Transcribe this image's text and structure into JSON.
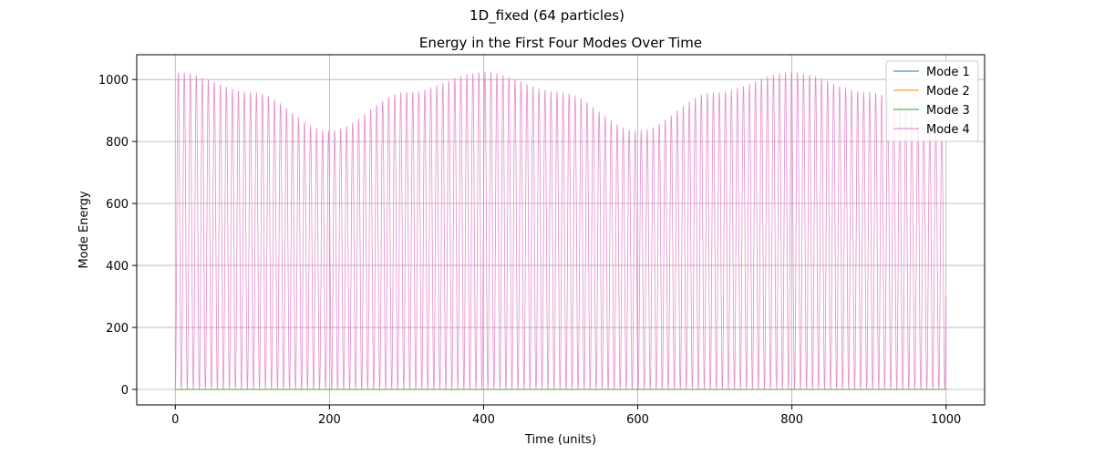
{
  "figure": {
    "suptitle": "1D_fixed (64 particles)"
  },
  "chart_data": {
    "type": "line",
    "title": "Energy in the First Four Modes Over Time",
    "xlabel": "Time (units)",
    "ylabel": "Mode Energy",
    "xlim": [
      -50,
      1050
    ],
    "ylim": [
      -50,
      1080
    ],
    "xticks": [
      0,
      200,
      400,
      600,
      800,
      1000
    ],
    "yticks": [
      0,
      200,
      400,
      600,
      800,
      1000
    ],
    "grid": true,
    "legend_position": "upper right",
    "series": [
      {
        "name": "Mode 1",
        "color": "#1f77b4",
        "x": [
          0,
          1000
        ],
        "values": [
          0,
          0
        ]
      },
      {
        "name": "Mode 2",
        "color": "#ff7f0e",
        "x": [
          0,
          1000
        ],
        "values": [
          0,
          0
        ]
      },
      {
        "name": "Mode 3",
        "color": "#2ca02c",
        "x": [
          0,
          1000
        ],
        "values": [
          0,
          0
        ]
      },
      {
        "name": "Mode 4",
        "color": "#e377c2",
        "oscillation_period": 7.8,
        "x": [
          0,
          100,
          200,
          300,
          400,
          500,
          600,
          700,
          800,
          900,
          1000
        ],
        "values": [
          1025,
          960,
          835,
          960,
          1025,
          960,
          835,
          960,
          1025,
          960,
          835
        ]
      }
    ]
  }
}
